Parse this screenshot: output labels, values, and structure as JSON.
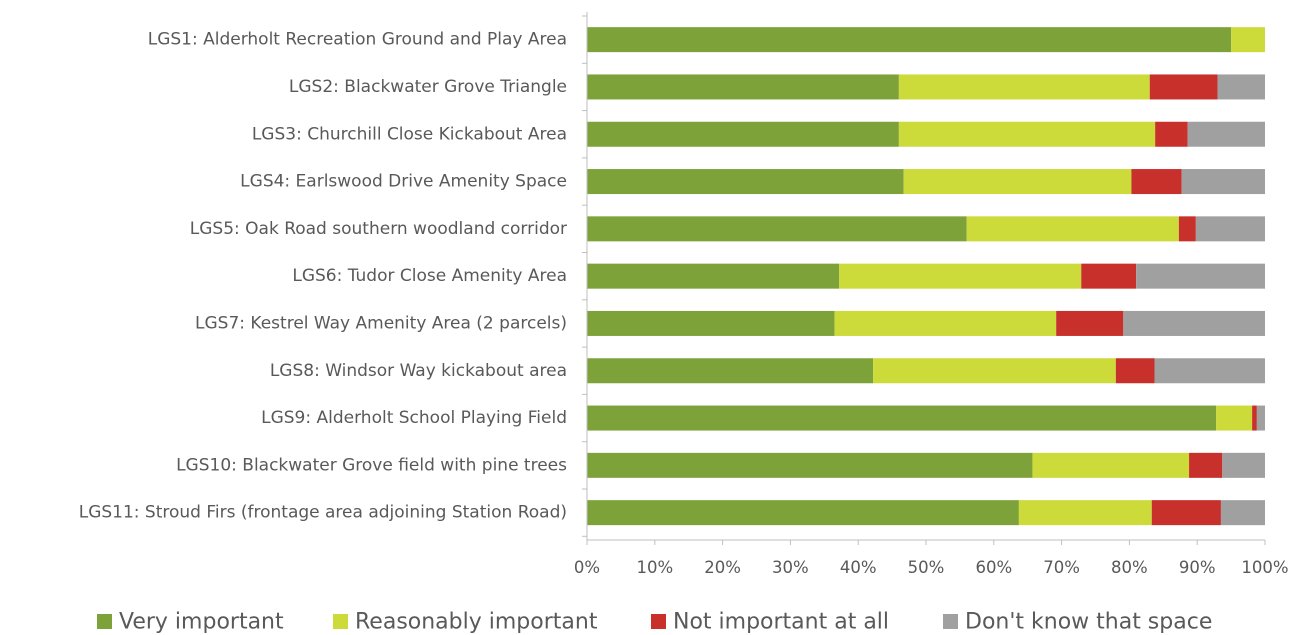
{
  "chart_data": {
    "type": "bar",
    "orientation": "horizontal",
    "stacked": true,
    "percent_stacked": true,
    "categories": [
      "LGS1: Alderholt Recreation Ground and Play Area",
      "LGS2: Blackwater Grove Triangle",
      "LGS3: Churchill Close Kickabout Area",
      "LGS4: Earlswood Drive Amenity Space",
      "LGS5: Oak Road southern woodland corridor",
      "LGS6: Tudor Close Amenity Area",
      "LGS7: Kestrel Way Amenity Area (2 parcels)",
      "LGS8: Windsor Way kickabout area",
      "LGS9: Alderholt School Playing Field",
      "LGS10: Blackwater Grove field with pine trees",
      "LGS11: Stroud Firs (frontage area adjoining Station Road)"
    ],
    "series": [
      {
        "name": "Very important",
        "color": "#7ea23a",
        "values": [
          95,
          46,
          46,
          46.7,
          56,
          37.2,
          36.5,
          42.2,
          92.8,
          65.7,
          63.7
        ]
      },
      {
        "name": "Reasonably important",
        "color": "#ccda3a",
        "values": [
          5,
          37,
          37.8,
          33.6,
          31.3,
          35.7,
          32.7,
          35.8,
          5.3,
          23.1,
          19.6
        ]
      },
      {
        "name": "Not important at all",
        "color": "#c8302c",
        "values": [
          0,
          10,
          4.8,
          7.4,
          2.5,
          8.1,
          9.9,
          5.7,
          0.7,
          4.9,
          10.2
        ]
      },
      {
        "name": "Don't know that space",
        "color": "#a0a0a0",
        "values": [
          0,
          7,
          11.4,
          12.3,
          10.2,
          19,
          20.9,
          16.3,
          1.2,
          6.3,
          6.5
        ]
      }
    ],
    "xlim": [
      0,
      100
    ],
    "x_ticks": [
      "0%",
      "10%",
      "20%",
      "30%",
      "40%",
      "50%",
      "60%",
      "70%",
      "80%",
      "90%",
      "100%"
    ],
    "grid": false,
    "legend_position": "bottom",
    "title": "",
    "xlabel": "",
    "ylabel": ""
  }
}
